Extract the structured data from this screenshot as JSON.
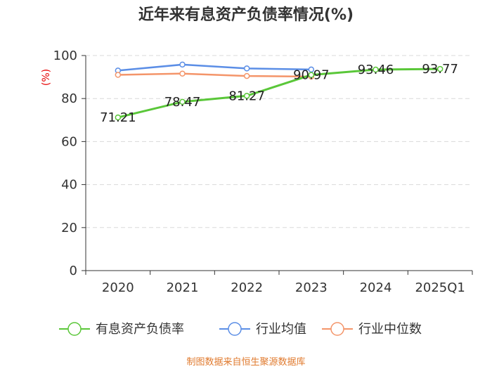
{
  "chart_data": {
    "type": "line",
    "title": "近年来有息资产负债率情况(%)",
    "ylabel": "(%)",
    "categories": [
      "2020",
      "2021",
      "2022",
      "2023",
      "2024",
      "2025Q1"
    ],
    "ylim": [
      0,
      100
    ],
    "yticks": [
      "0",
      "20",
      "40",
      "60",
      "80",
      "100"
    ],
    "grid": true,
    "legend_position": "bottom",
    "series": [
      {
        "name": "有息资产负债率",
        "color": "#5ac739",
        "values": [
          71.21,
          78.47,
          81.27,
          90.97,
          93.46,
          93.77
        ],
        "labels": [
          "71.21",
          "78.47",
          "81.27",
          "90.97",
          "93.46",
          "93.77"
        ]
      },
      {
        "name": "行业均值",
        "color": "#5b8ee6",
        "values": [
          93.0,
          95.8,
          94.0,
          93.5,
          null,
          null
        ]
      },
      {
        "name": "行业中位数",
        "color": "#f4956a",
        "values": [
          91.0,
          91.6,
          90.5,
          90.2,
          null,
          null
        ]
      }
    ],
    "source": "制图数据来自恒生聚源数据库"
  }
}
